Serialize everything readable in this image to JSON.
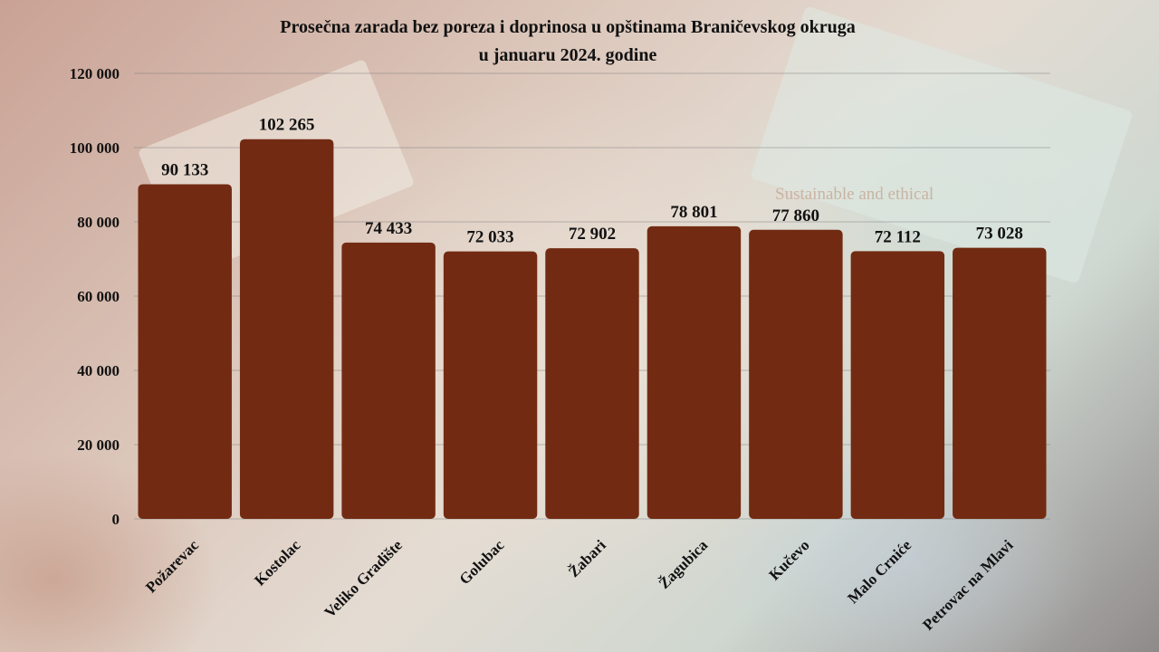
{
  "chart_data": {
    "type": "bar",
    "title": "Prosečna zarada bez poreza i doprinosa u opštinama Braničevskog okruga",
    "subtitle": "u januaru 2024. godine",
    "categories": [
      "Požarevac",
      "Kostolac",
      "Veliko Gradište",
      "Golubac",
      "Žabari",
      "Žagubica",
      "Kučevo",
      "Malo Crniće",
      "Petrovac na Mlavi"
    ],
    "values": [
      90133,
      102265,
      74433,
      72033,
      72902,
      78801,
      77860,
      72112,
      73028
    ],
    "data_labels": [
      "90 133",
      "102 265",
      "74 433",
      "72 033",
      "72 902",
      "78 801",
      "77 860",
      "72 112",
      "73 028"
    ],
    "ylim": [
      0,
      120000
    ],
    "yticks": [
      0,
      20000,
      40000,
      60000,
      80000,
      100000,
      120000
    ],
    "ytick_labels": [
      "0",
      "20 000",
      "40 000",
      "60 000",
      "80 000",
      "100 000",
      "120 000"
    ],
    "grid": true,
    "legend": "none",
    "bar_color": "#722b12"
  },
  "background": {
    "watermark_text": "Sustainable and ethical"
  }
}
